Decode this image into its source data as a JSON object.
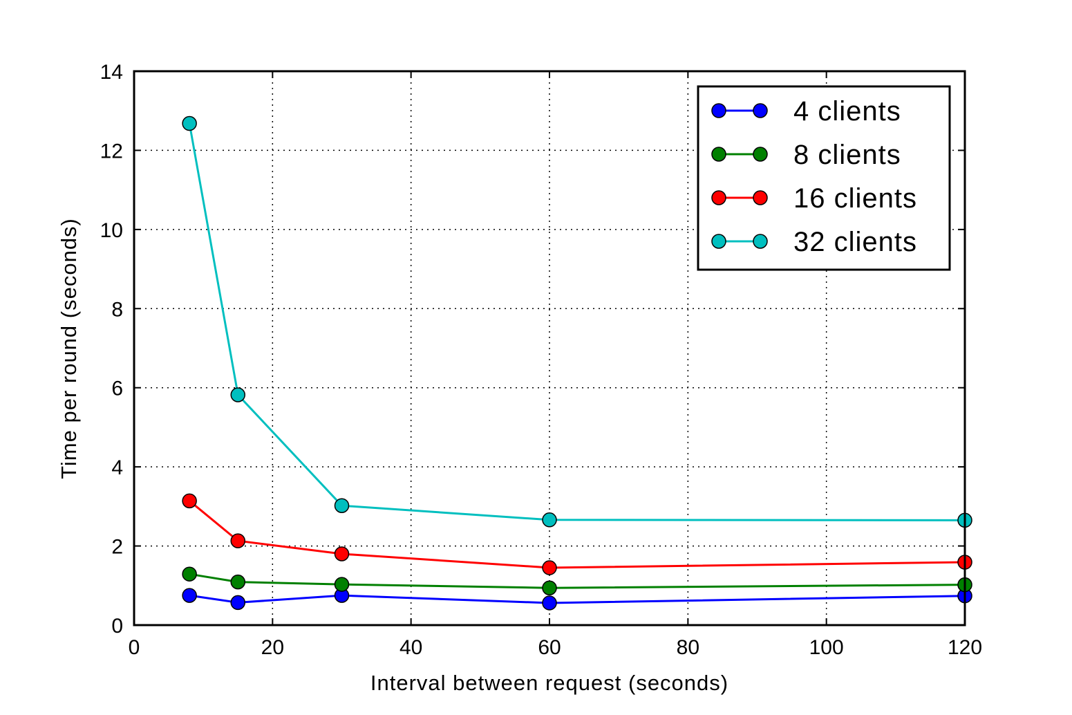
{
  "chart_data": {
    "type": "line",
    "xlabel": "Interval between request (seconds)",
    "ylabel": "Time per round (seconds)",
    "xlim": [
      0,
      120
    ],
    "ylim": [
      0,
      14
    ],
    "xticks": [
      0,
      20,
      40,
      60,
      80,
      100,
      120
    ],
    "yticks": [
      0,
      2,
      4,
      6,
      8,
      10,
      12,
      14
    ],
    "grid": true,
    "legend_position": "top-right",
    "x": [
      8,
      15,
      30,
      60,
      120
    ],
    "series": [
      {
        "name": "4 clients",
        "color": "#0000ff",
        "values": [
          0.75,
          0.57,
          0.75,
          0.56,
          0.74
        ]
      },
      {
        "name": "8 clients",
        "color": "#008000",
        "values": [
          1.29,
          1.09,
          1.03,
          0.94,
          1.02
        ]
      },
      {
        "name": "16 clients",
        "color": "#ff0000",
        "values": [
          3.14,
          2.13,
          1.8,
          1.45,
          1.59
        ]
      },
      {
        "name": "32 clients",
        "color": "#00bfbf",
        "values": [
          12.68,
          5.82,
          3.02,
          2.66,
          2.65
        ]
      }
    ]
  }
}
